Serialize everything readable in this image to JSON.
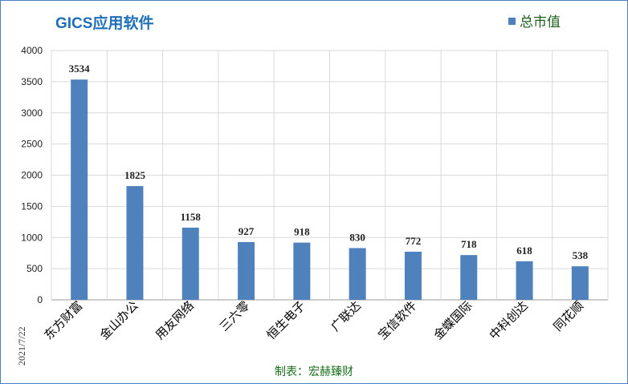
{
  "chart_data": {
    "type": "bar",
    "title": "GICS应用软件",
    "legend": {
      "label": "总市值",
      "position": "top-right"
    },
    "categories": [
      "东方财富",
      "金山办公",
      "用友网络",
      "三六零",
      "恒生电子",
      "广联达",
      "宝信软件",
      "金蝶国际",
      "中科创达",
      "同花顺"
    ],
    "values": [
      3534,
      1825,
      1158,
      927,
      918,
      830,
      772,
      718,
      618,
      538
    ],
    "ylim": [
      0,
      4000
    ],
    "yticks": [
      0,
      500,
      1000,
      1500,
      2000,
      2500,
      3000,
      3500,
      4000
    ],
    "grid": true,
    "bar_color": "#4f81bd",
    "side_note": "2021/7/22",
    "footer": "制表：宏赫臻财"
  }
}
